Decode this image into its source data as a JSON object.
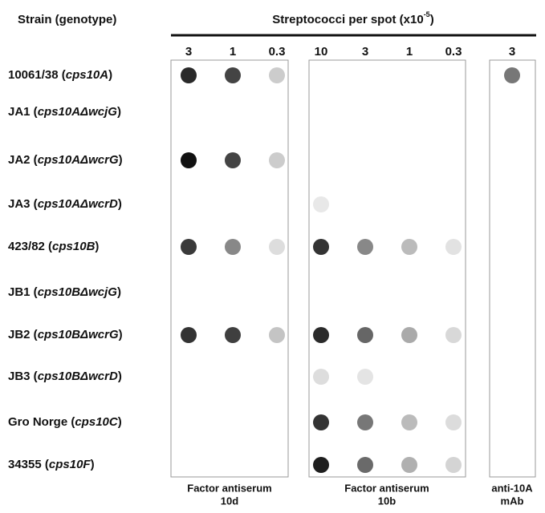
{
  "header": {
    "strain_title": "Strain (genotype)",
    "spot_title": [
      "Streptococci per spot (x10",
      "-5",
      ")"
    ]
  },
  "panels": [
    {
      "columns": [
        3,
        1,
        0.3
      ],
      "label": [
        "Factor antiserum",
        "10d"
      ]
    },
    {
      "columns": [
        10,
        3,
        1,
        0.3
      ],
      "label": [
        "Factor antiserum",
        "10b"
      ]
    },
    {
      "columns": [
        3
      ],
      "label": [
        "anti-10A",
        "mAb"
      ]
    }
  ],
  "rows": [
    [
      "10061/38 (",
      "cps10A",
      ")"
    ],
    [
      "JA1 (",
      "cps10AΔwcjG",
      ")"
    ],
    [
      "JA2 (",
      "cps10AΔwcrG",
      ")"
    ],
    [
      "JA3 (",
      "cps10AΔwcrD",
      ")"
    ],
    [
      "423/82 (",
      "cps10B",
      ")"
    ],
    [
      "JB1 (",
      "cps10BΔwcjG",
      ")"
    ],
    [
      "JB2 (",
      "cps10BΔwcrG",
      ")"
    ],
    [
      "JB3 (",
      "cps10BΔwcrD",
      ")"
    ],
    [
      "Gro Norge (",
      "cps10C",
      ")"
    ],
    [
      "34355 (",
      "cps10F",
      ")"
    ]
  ]
}
